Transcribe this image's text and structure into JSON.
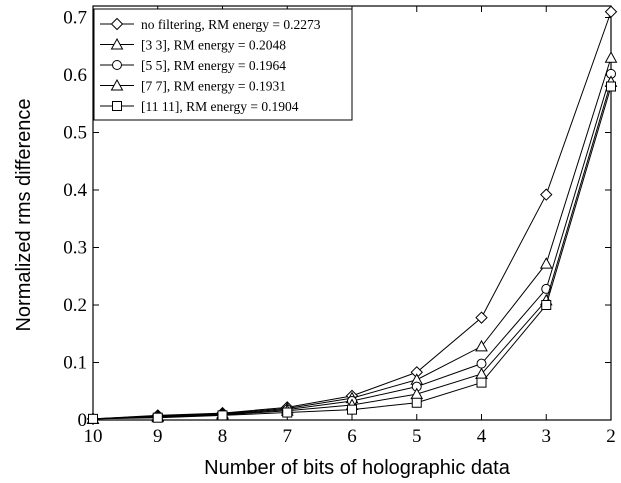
{
  "chart_data": {
    "type": "line",
    "title": "",
    "xlabel": "Number of bits of holographic data",
    "ylabel": "Normalized rms difference",
    "x": [
      10,
      9,
      8,
      7,
      6,
      5,
      4,
      3,
      2
    ],
    "x_tick_labels": [
      "10",
      "9",
      "8",
      "7",
      "6",
      "5",
      "4",
      "3",
      "2"
    ],
    "x_reversed": true,
    "xlim": [
      10,
      2
    ],
    "ylim": [
      0,
      0.72
    ],
    "y_ticks": [
      0,
      0.1,
      0.2,
      0.3,
      0.4,
      0.5,
      0.6,
      0.7
    ],
    "y_tick_labels": [
      "0",
      "0.1",
      "0.2",
      "0.3",
      "0.4",
      "0.5",
      "0.6",
      "0.7"
    ],
    "grid": false,
    "legend_position": "top-left",
    "line_color": "#000000",
    "series": [
      {
        "name": "no filtering, RM energy = 0.2273",
        "marker": "diamond",
        "values": [
          0.002,
          0.008,
          0.012,
          0.022,
          0.042,
          0.083,
          0.178,
          0.392,
          0.71
        ]
      },
      {
        "name": "[3 3], RM energy = 0.2048",
        "marker": "triangle",
        "values": [
          0.002,
          0.007,
          0.011,
          0.02,
          0.038,
          0.07,
          0.128,
          0.272,
          0.63
        ]
      },
      {
        "name": "[5 5], RM energy = 0.1964",
        "marker": "circle",
        "values": [
          0.002,
          0.006,
          0.01,
          0.018,
          0.033,
          0.058,
          0.098,
          0.228,
          0.602
        ]
      },
      {
        "name": "[7 7], RM energy = 0.1931",
        "marker": "triangle",
        "values": [
          0.002,
          0.005,
          0.009,
          0.016,
          0.026,
          0.045,
          0.08,
          0.208,
          0.588
        ]
      },
      {
        "name": "[11 11], RM energy = 0.1904",
        "marker": "square",
        "values": [
          0.002,
          0.004,
          0.008,
          0.013,
          0.018,
          0.03,
          0.065,
          0.2,
          0.58
        ]
      }
    ]
  }
}
